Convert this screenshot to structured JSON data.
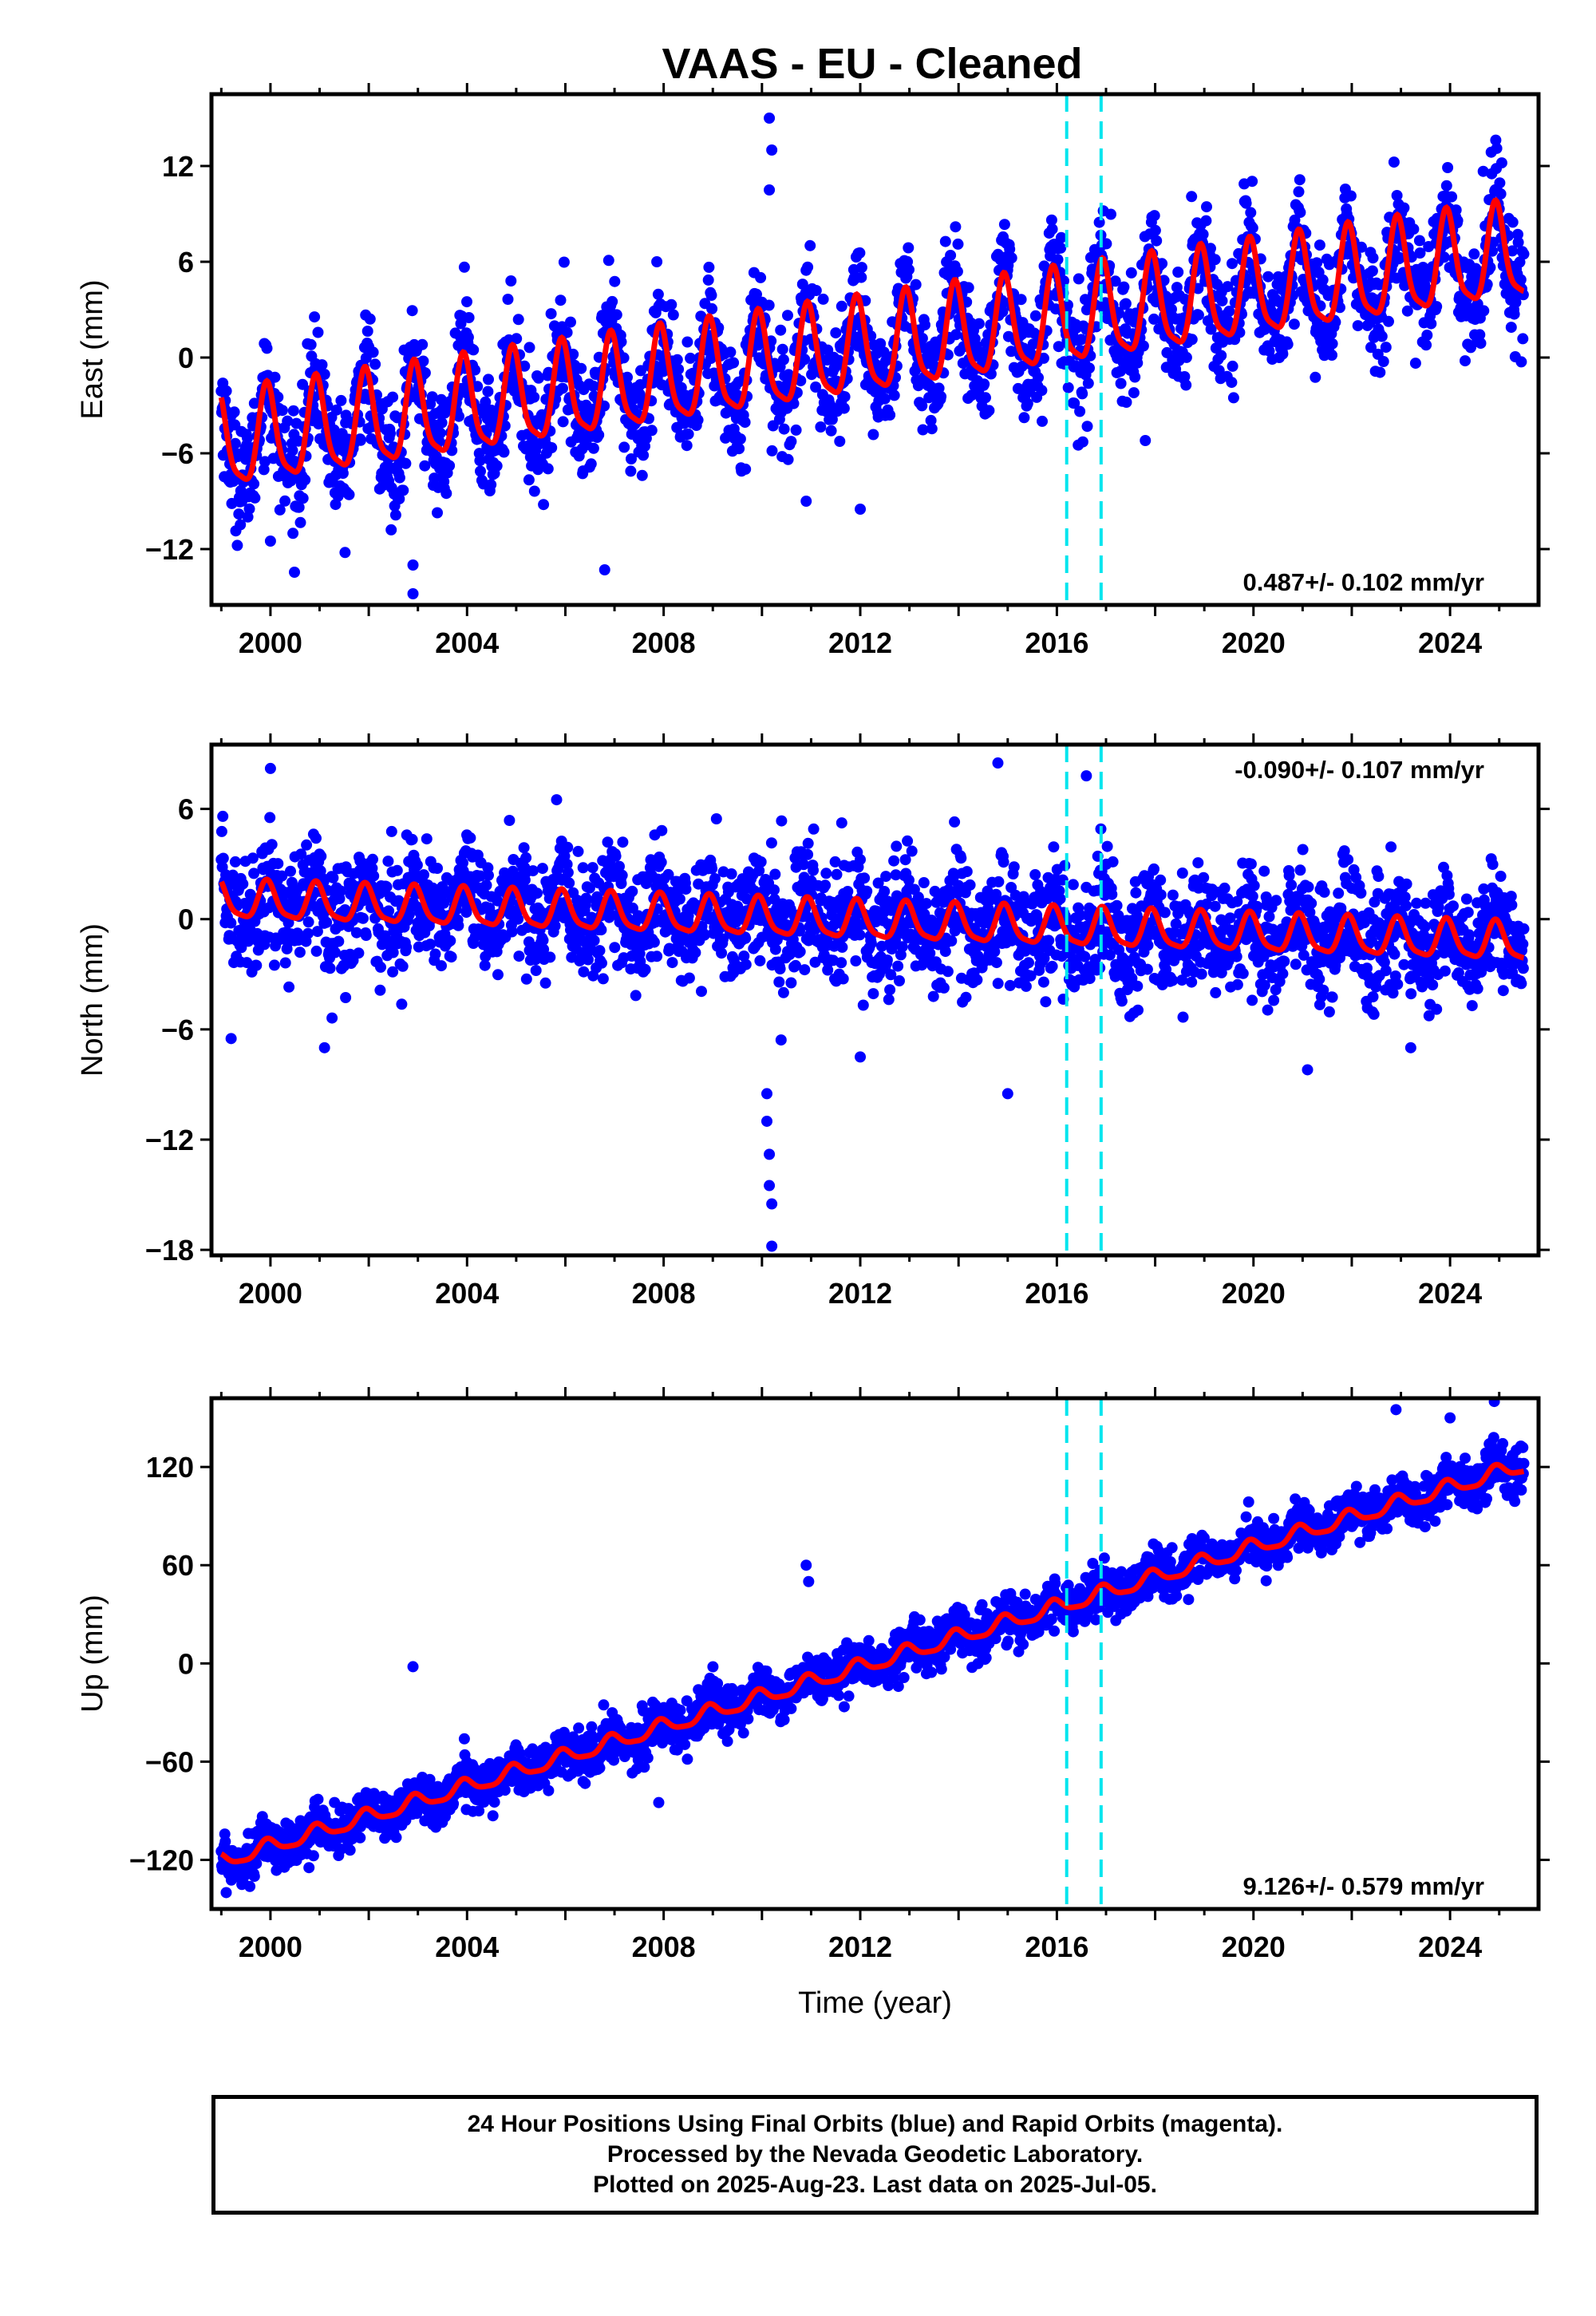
{
  "title": "VAAS  - EU - Cleaned",
  "colors": {
    "data": "#0000ff",
    "model": "#ff0000",
    "events": "#00e5ee",
    "frame": "#000000"
  },
  "chart_data": [
    {
      "type": "scatter",
      "name": "east",
      "ylabel": "East (mm)",
      "xlim": [
        1998.8,
        2025.8
      ],
      "ylim": [
        -15.5,
        16.5
      ],
      "yticks": [
        "12",
        "6",
        "0",
        "-6",
        "-12"
      ],
      "ytick_values": [
        12,
        6,
        0,
        -6,
        -12
      ],
      "xticks": [
        "2000",
        "2004",
        "2008",
        "2012",
        "2016",
        "2020",
        "2024"
      ],
      "xtick_values": [
        2000,
        2004,
        2008,
        2012,
        2016,
        2020,
        2024
      ],
      "rate_label": "0.487+/- 0.102 mm/yr",
      "rate_position": "bottom-right",
      "trend": {
        "start_year": 1999.0,
        "end_year": 2025.5,
        "start_value": -5.5,
        "end_value": 6.5
      },
      "seasonal_amplitude_mm": 2.9,
      "scatter_sigma_mm": 1.8,
      "event_lines": [
        2016.2,
        2016.9
      ],
      "outliers": [
        {
          "x": 2010.15,
          "y": 15.0
        },
        {
          "x": 2010.2,
          "y": 13.0
        },
        {
          "x": 2010.15,
          "y": 10.5
        },
        {
          "x": 2002.9,
          "y": -13.0
        },
        {
          "x": 2002.9,
          "y": -14.8
        },
        {
          "x": 2006.8,
          "y": -13.3
        },
        {
          "x": 2010.9,
          "y": -9.0
        },
        {
          "x": 2012.0,
          "y": -9.5
        },
        {
          "x": 2017.8,
          "y": -5.2
        },
        {
          "x": 2000.0,
          "y": -11.5
        }
      ]
    },
    {
      "type": "scatter",
      "name": "north",
      "ylabel": "North (mm)",
      "xlim": [
        1998.8,
        2025.8
      ],
      "ylim": [
        -18.3,
        9.5
      ],
      "yticks": [
        "6",
        "0",
        "-6",
        "-12",
        "-18"
      ],
      "ytick_values": [
        6,
        0,
        -6,
        -12,
        -18
      ],
      "xticks": [
        "2000",
        "2004",
        "2008",
        "2012",
        "2016",
        "2020",
        "2024"
      ],
      "xtick_values": [
        2000,
        2004,
        2008,
        2012,
        2016,
        2020,
        2024
      ],
      "rate_label": "-0.090+/- 0.107 mm/yr",
      "rate_position": "top-right",
      "trend": {
        "start_year": 1999.0,
        "end_year": 2025.5,
        "start_value": 1.0,
        "end_value": -1.3
      },
      "seasonal_amplitude_mm": 1.0,
      "scatter_sigma_mm": 1.6,
      "event_lines": [
        2016.2,
        2016.9
      ],
      "outliers": [
        {
          "x": 2010.1,
          "y": -9.5
        },
        {
          "x": 2010.1,
          "y": -11.0
        },
        {
          "x": 2010.15,
          "y": -12.8
        },
        {
          "x": 2010.15,
          "y": -14.5
        },
        {
          "x": 2010.2,
          "y": -15.5
        },
        {
          "x": 2010.2,
          "y": -17.8
        },
        {
          "x": 2014.8,
          "y": 8.5
        },
        {
          "x": 2016.6,
          "y": 7.8
        },
        {
          "x": 1999.2,
          "y": -6.5
        },
        {
          "x": 2001.1,
          "y": -7.0
        },
        {
          "x": 2015.0,
          "y": -9.5
        },
        {
          "x": 2021.1,
          "y": -8.2
        },
        {
          "x": 2023.2,
          "y": -7.0
        },
        {
          "x": 2000.0,
          "y": 8.2
        },
        {
          "x": 2012.0,
          "y": -7.5
        }
      ]
    },
    {
      "type": "scatter",
      "name": "up",
      "ylabel": "Up (mm)",
      "xlim": [
        1998.8,
        2025.8
      ],
      "ylim": [
        -150,
        162
      ],
      "yticks": [
        "120",
        "60",
        "0",
        "-60",
        "-120"
      ],
      "ytick_values": [
        120,
        60,
        0,
        -60,
        -120
      ],
      "xticks": [
        "2000",
        "2004",
        "2008",
        "2012",
        "2016",
        "2020",
        "2024"
      ],
      "xtick_values": [
        2000,
        2004,
        2008,
        2012,
        2016,
        2020,
        2024
      ],
      "xlabel": "Time (year)",
      "rate_label": "9.126+/- 0.579 mm/yr",
      "rate_position": "bottom-right",
      "trend": {
        "start_year": 1999.0,
        "end_year": 2025.5,
        "start_value": -121,
        "end_value": 121
      },
      "seasonal_amplitude_mm": 4.5,
      "scatter_sigma_mm": 7.0,
      "event_lines": [
        2016.2,
        2016.9
      ],
      "outliers": [
        {
          "x": 2002.9,
          "y": -2
        },
        {
          "x": 2010.9,
          "y": 60
        },
        {
          "x": 2010.95,
          "y": 50
        },
        {
          "x": 2022.9,
          "y": 155
        },
        {
          "x": 2024.0,
          "y": 150
        },
        {
          "x": 2024.9,
          "y": 160
        },
        {
          "x": 2007.9,
          "y": -85
        },
        {
          "x": 1999.1,
          "y": -140
        }
      ]
    }
  ],
  "footer": {
    "line1": "24 Hour Positions Using Final Orbits (blue) and Rapid Orbits (magenta).",
    "line2": "Processed by the Nevada Geodetic Laboratory.",
    "line3": "Plotted on 2025-Aug-23. Last data on 2025-Jul-05."
  }
}
